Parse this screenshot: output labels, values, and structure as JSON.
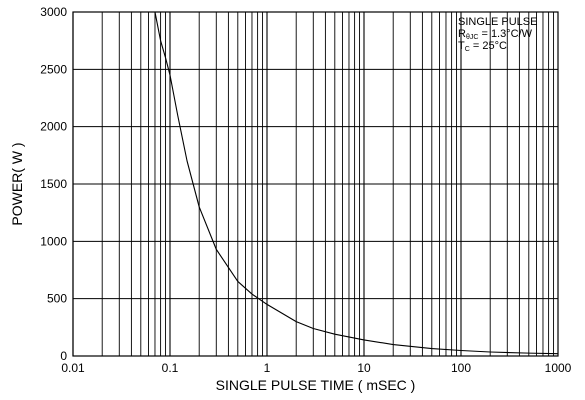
{
  "chart_data": {
    "type": "line",
    "xscale": "log",
    "xlabel": "SINGLE PULSE TIME ( mSEC )",
    "ylabel": "POWER( W )",
    "xlim": [
      0.01,
      1000
    ],
    "ylim": [
      0,
      3000
    ],
    "x_ticks": [
      0.01,
      0.1,
      1,
      10,
      100,
      1000
    ],
    "x_tick_labels": [
      "0.01",
      "0.1",
      "1",
      "10",
      "100",
      "1000"
    ],
    "y_ticks": [
      0,
      500,
      1000,
      1500,
      2000,
      2500,
      3000
    ],
    "y_tick_labels": [
      "0",
      "500",
      "1000",
      "1500",
      "2000",
      "2500",
      "3000"
    ],
    "grid": true,
    "series": [
      {
        "x": [
          0.07,
          0.08,
          0.09,
          0.1,
          0.12,
          0.15,
          0.2,
          0.3,
          0.5,
          0.7,
          1,
          2,
          3,
          5,
          10,
          20,
          50,
          100,
          200,
          500,
          1000
        ],
        "y": [
          3000,
          2750,
          2600,
          2450,
          2100,
          1700,
          1300,
          930,
          650,
          540,
          450,
          300,
          240,
          190,
          140,
          100,
          65,
          48,
          35,
          25,
          20
        ]
      }
    ],
    "annotation": {
      "line1": "SINGLE PULSE",
      "line2_main": "R",
      "line2_sub": "θJC",
      "line2_rest": " = 1.3°C/W",
      "line3_main": "T",
      "line3_sub": "C",
      "line3_rest": " = 25°C",
      "placement": "top-right"
    },
    "line_color": "#000000",
    "grid_color": "#000000"
  }
}
